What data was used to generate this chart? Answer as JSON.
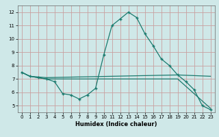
{
  "xlabel": "Humidex (Indice chaleur)",
  "background_color": "#cfe8e8",
  "grid_color": "#c8a0a0",
  "line_color": "#1a7a6e",
  "xlim": [
    -0.5,
    23.5
  ],
  "ylim": [
    4.5,
    12.5
  ],
  "yticks": [
    5,
    6,
    7,
    8,
    9,
    10,
    11,
    12
  ],
  "xticks": [
    0,
    1,
    2,
    3,
    4,
    5,
    6,
    7,
    8,
    9,
    10,
    11,
    12,
    13,
    14,
    15,
    16,
    17,
    18,
    19,
    20,
    21,
    22,
    23
  ],
  "series1_x": [
    0,
    1,
    2,
    3,
    4,
    5,
    6,
    7,
    8,
    9,
    10,
    11,
    12,
    13,
    14,
    15,
    16,
    17,
    18,
    19,
    20,
    21,
    22,
    23
  ],
  "series1_y": [
    7.5,
    7.2,
    7.1,
    7.0,
    6.8,
    5.9,
    5.8,
    5.5,
    5.8,
    6.3,
    8.8,
    11.0,
    11.5,
    12.0,
    11.6,
    10.4,
    9.5,
    8.5,
    8.0,
    7.3,
    6.8,
    6.2,
    5.0,
    4.7
  ],
  "series2_x": [
    0,
    1,
    2,
    3,
    19,
    23
  ],
  "series2_y": [
    7.5,
    7.2,
    7.15,
    7.1,
    7.3,
    7.2
  ],
  "series3_x": [
    0,
    1,
    2,
    3,
    19,
    23
  ],
  "series3_y": [
    7.5,
    7.2,
    7.1,
    7.0,
    7.0,
    4.8
  ],
  "xlabel_fontsize": 6.0,
  "tick_fontsize": 5.0
}
